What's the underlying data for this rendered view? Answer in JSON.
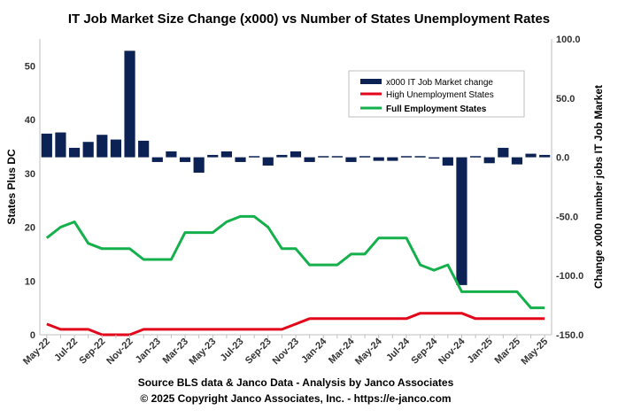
{
  "chart_data": {
    "type": "bar",
    "title": "IT Job Market Size Change (x000)  vs Number of States Unemployment Rates",
    "ylabel": "States Plus DC",
    "y2label": "Change x000 number jobs IT Job Market",
    "ylim": [
      0,
      55
    ],
    "yticks": [
      0,
      10,
      20,
      30,
      40,
      50
    ],
    "y2lim": [
      -150,
      100
    ],
    "y2ticks": [
      -150.0,
      -100.0,
      -50.0,
      0.0,
      50.0,
      100.0
    ],
    "y2tick_labels": [
      "-150.0",
      "-100.0",
      "-50.0",
      "0.0",
      "50.0",
      "100.0"
    ],
    "grid": false,
    "legend_position": "top-right",
    "x": [
      "May-22",
      "Jun-22",
      "Jul-22",
      "Aug-22",
      "Sep-22",
      "Oct-22",
      "Nov-22",
      "Dec-22",
      "Jan-23",
      "Feb-23",
      "Mar-23",
      "Apr-23",
      "May-23",
      "Jun-23",
      "Jul-23",
      "Aug-23",
      "Sep-23",
      "Oct-23",
      "Nov-23",
      "Dec-23",
      "Jan-24",
      "Feb-24",
      "Mar-24",
      "Apr-24",
      "May-24",
      "Jun-24",
      "Jul-24",
      "Aug-24",
      "Sep-24",
      "Oct-24",
      "Nov-24",
      "Dec-24",
      "Jan-25",
      "Feb-25",
      "Mar-25",
      "Apr-25",
      "May-25"
    ],
    "x_tick_labels": [
      "May-22",
      "Jul-22",
      "Sep-22",
      "Nov-22",
      "Jan-23",
      "Mar-23",
      "May-23",
      "Jul-23",
      "Sep-23",
      "Nov-23",
      "Jan-24",
      "Mar-24",
      "May-24",
      "Jul-24",
      "Sep-24",
      "Nov-24",
      "Jan-25",
      "Mar-25",
      "May-25"
    ],
    "series": [
      {
        "name": "x000 IT Job Market change",
        "type": "bar",
        "axis": "right",
        "color": "#0c2254",
        "values": [
          20,
          21,
          8,
          13,
          19,
          15,
          90,
          14,
          -4,
          5,
          -4,
          -13,
          2,
          5,
          -4,
          1,
          -7,
          2,
          5,
          -4,
          1,
          1,
          -4,
          1,
          -3,
          -3,
          1,
          1,
          0,
          -7,
          -108,
          1,
          -5,
          8,
          -6,
          3,
          2
        ]
      },
      {
        "name": "High Unemployment States",
        "type": "line",
        "axis": "left",
        "color": "#e3061b",
        "values": [
          2,
          1,
          1,
          1,
          0,
          0,
          0,
          1,
          1,
          1,
          1,
          1,
          1,
          1,
          1,
          1,
          1,
          1,
          2,
          3,
          3,
          3,
          3,
          3,
          3,
          3,
          3,
          4,
          4,
          4,
          4,
          3,
          3,
          3,
          3,
          3,
          3
        ]
      },
      {
        "name": "Full Employment States",
        "type": "line",
        "axis": "left",
        "color": "#14b04b",
        "values": [
          18,
          20,
          21,
          17,
          16,
          16,
          16,
          14,
          14,
          14,
          19,
          19,
          19,
          21,
          22,
          22,
          20,
          16,
          16,
          13,
          13,
          13,
          15,
          15,
          18,
          18,
          18,
          13,
          12,
          13,
          8,
          8,
          8,
          8,
          8,
          5,
          5
        ]
      }
    ]
  },
  "footer": {
    "source": "Source BLS data & Janco Data  - Analysis by Janco  Associates",
    "copyright": "© 2025 Copyright Janco Associates, Inc.  - https://e-janco.com"
  }
}
